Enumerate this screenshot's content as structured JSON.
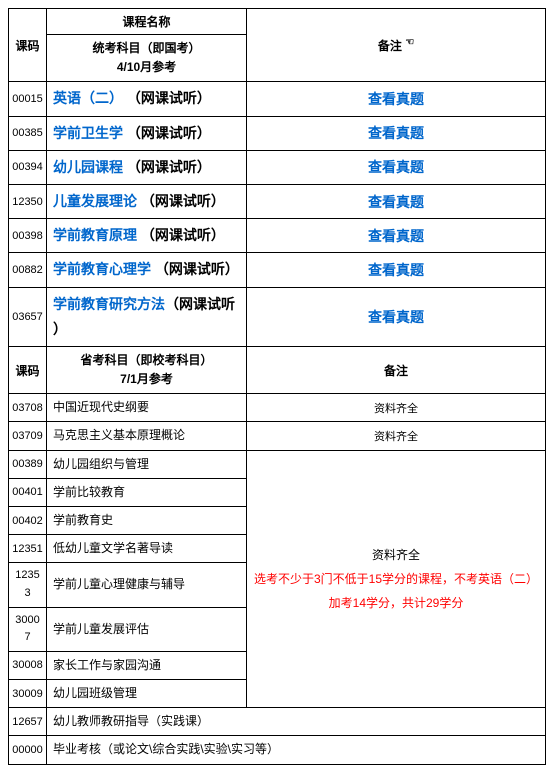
{
  "header1": {
    "code": "课码",
    "name_line1": "课程名称",
    "name_line2": "统考科目（即国考）",
    "name_line3": "4/10月参考",
    "remark": "备注",
    "remark_icon": "☜"
  },
  "section1": [
    {
      "code": "00015",
      "name": "英语（二）",
      "suffix": "（网课试听）",
      "remark": "查看真题"
    },
    {
      "code": "00385",
      "name": "学前卫生学",
      "suffix": "（网课试听）",
      "remark": "查看真题"
    },
    {
      "code": "00394",
      "name": "幼儿园课程",
      "suffix": "（网课试听）",
      "remark": "查看真题"
    },
    {
      "code": "12350",
      "name": "儿童发展理论",
      "suffix": "（网课试听）",
      "remark": "查看真题"
    },
    {
      "code": "00398",
      "name": "学前教育原理",
      "suffix": "（网课试听）",
      "remark": "查看真题"
    },
    {
      "code": "00882",
      "name": "学前教育心理学",
      "suffix": "（网课试听）",
      "remark": "查看真题"
    },
    {
      "code": "03657",
      "name": "学前教育研究方法",
      "suffix": "（网课试听）",
      "remark": "查看真题",
      "wrap": true
    }
  ],
  "header2": {
    "code": "课码",
    "name_line1": "省考科目（即校考科目）",
    "name_line2": "7/1月参考",
    "remark": "备注"
  },
  "section2a": [
    {
      "code": "03708",
      "name": "中国近现代史纲要",
      "remark": "资料齐全"
    },
    {
      "code": "03709",
      "name": "马克思主义基本原理概论",
      "remark": "资料齐全"
    }
  ],
  "section2b": [
    {
      "code": "00389",
      "name": "幼儿园组织与管理"
    },
    {
      "code": "00401",
      "name": "学前比较教育"
    },
    {
      "code": "00402",
      "name": "学前教育史"
    },
    {
      "code": "12351",
      "name": "低幼儿童文学名著导读"
    },
    {
      "code": "12353",
      "name": "学前儿童心理健康与辅导",
      "wrapcode": true
    },
    {
      "code": "30007",
      "name": "学前儿童发展评估",
      "wrapcode": true
    },
    {
      "code": "30008",
      "name": "家长工作与家园沟通"
    },
    {
      "code": "30009",
      "name": "幼儿园班级管理"
    }
  ],
  "merged_remark": {
    "line1": "资料齐全",
    "line2": "选考不少于3门不低于15学分的课程，不考英语（二）加考14学分，共计29学分"
  },
  "section2c": [
    {
      "code": "12657",
      "name": "幼儿教师教研指导（实践课）"
    },
    {
      "code": "00000",
      "name": "毕业考核（或论文\\综合实践\\实验\\实习等）"
    }
  ]
}
